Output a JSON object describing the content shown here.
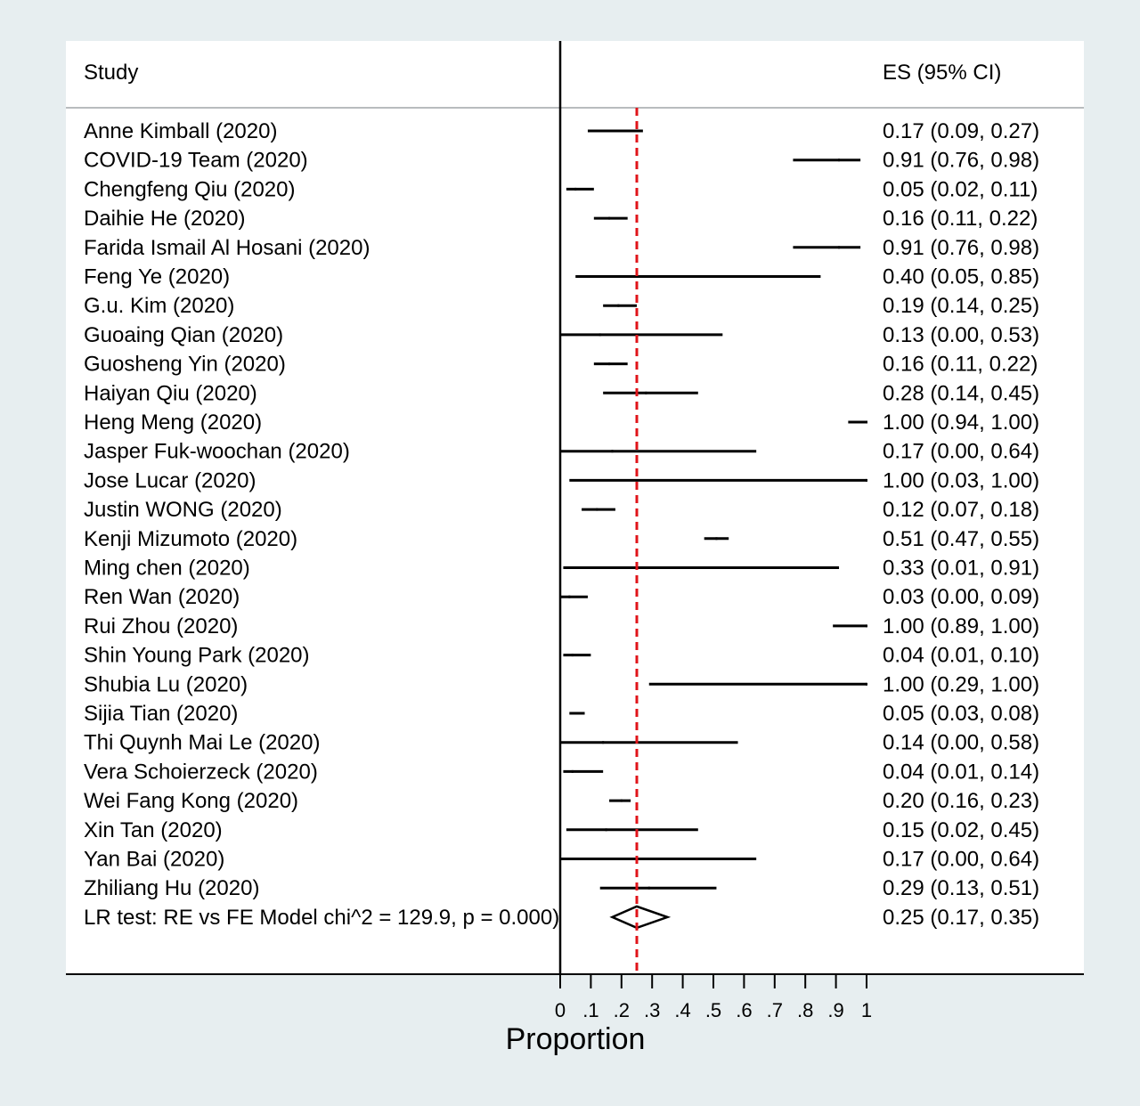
{
  "chart_data": {
    "type": "forest",
    "header": {
      "study": "Study",
      "es": "ES (95% CI)"
    },
    "xlabel": "Proportion",
    "xlim": [
      0,
      1
    ],
    "ticks": [
      {
        "value": 0,
        "label": "0"
      },
      {
        "value": 0.1,
        "label": ".1"
      },
      {
        "value": 0.2,
        "label": ".2"
      },
      {
        "value": 0.3,
        "label": ".3"
      },
      {
        "value": 0.4,
        "label": ".4"
      },
      {
        "value": 0.5,
        "label": ".5"
      },
      {
        "value": 0.6,
        "label": ".6"
      },
      {
        "value": 0.7,
        "label": ".7"
      },
      {
        "value": 0.8,
        "label": ".8"
      },
      {
        "value": 0.9,
        "label": ".9"
      },
      {
        "value": 1,
        "label": "1"
      }
    ],
    "reference_line": 0.25,
    "reference_color": "#e0141a",
    "studies": [
      {
        "name": "Anne Kimball (2020)",
        "es": 0.17,
        "lo": 0.09,
        "hi": 0.27,
        "label": "0.17 (0.09, 0.27)"
      },
      {
        "name": "COVID-19 Team (2020)",
        "es": 0.91,
        "lo": 0.76,
        "hi": 0.98,
        "label": "0.91 (0.76, 0.98)"
      },
      {
        "name": "Chengfeng Qiu (2020)",
        "es": 0.05,
        "lo": 0.02,
        "hi": 0.11,
        "label": "0.05 (0.02, 0.11)"
      },
      {
        "name": "Daihie He (2020)",
        "es": 0.16,
        "lo": 0.11,
        "hi": 0.22,
        "label": "0.16 (0.11, 0.22)"
      },
      {
        "name": "Farida Ismail Al Hosani (2020)",
        "es": 0.91,
        "lo": 0.76,
        "hi": 0.98,
        "label": "0.91 (0.76, 0.98)"
      },
      {
        "name": "Feng Ye (2020)",
        "es": 0.4,
        "lo": 0.05,
        "hi": 0.85,
        "label": "0.40 (0.05, 0.85)"
      },
      {
        "name": "G.u. Kim (2020)",
        "es": 0.19,
        "lo": 0.14,
        "hi": 0.25,
        "label": "0.19 (0.14, 0.25)"
      },
      {
        "name": "Guoaing Qian (2020)",
        "es": 0.13,
        "lo": 0.0,
        "hi": 0.53,
        "label": "0.13 (0.00, 0.53)"
      },
      {
        "name": "Guosheng Yin (2020)",
        "es": 0.16,
        "lo": 0.11,
        "hi": 0.22,
        "label": "0.16 (0.11, 0.22)"
      },
      {
        "name": "Haiyan Qiu (2020)",
        "es": 0.28,
        "lo": 0.14,
        "hi": 0.45,
        "label": "0.28 (0.14, 0.45)"
      },
      {
        "name": "Heng Meng (2020)",
        "es": 1.0,
        "lo": 0.94,
        "hi": 1.0,
        "label": "1.00 (0.94, 1.00)"
      },
      {
        "name": "Jasper Fuk-woochan (2020)",
        "es": 0.17,
        "lo": 0.0,
        "hi": 0.64,
        "label": "0.17 (0.00, 0.64)"
      },
      {
        "name": "Jose Lucar (2020)",
        "es": 1.0,
        "lo": 0.03,
        "hi": 1.0,
        "label": "1.00 (0.03, 1.00)"
      },
      {
        "name": "Justin WONG (2020)",
        "es": 0.12,
        "lo": 0.07,
        "hi": 0.18,
        "label": "0.12 (0.07, 0.18)"
      },
      {
        "name": "Kenji Mizumoto (2020)",
        "es": 0.51,
        "lo": 0.47,
        "hi": 0.55,
        "label": "0.51 (0.47, 0.55)"
      },
      {
        "name": "Ming chen (2020)",
        "es": 0.33,
        "lo": 0.01,
        "hi": 0.91,
        "label": "0.33 (0.01, 0.91)"
      },
      {
        "name": "Ren Wan (2020)",
        "es": 0.03,
        "lo": 0.0,
        "hi": 0.09,
        "label": "0.03 (0.00, 0.09)"
      },
      {
        "name": "Rui Zhou (2020)",
        "es": 1.0,
        "lo": 0.89,
        "hi": 1.0,
        "label": "1.00 (0.89, 1.00)"
      },
      {
        "name": "Shin Young Park (2020)",
        "es": 0.04,
        "lo": 0.01,
        "hi": 0.1,
        "label": "0.04 (0.01, 0.10)"
      },
      {
        "name": "Shubia Lu (2020)",
        "es": 1.0,
        "lo": 0.29,
        "hi": 1.0,
        "label": "1.00 (0.29, 1.00)"
      },
      {
        "name": "Sijia Tian (2020)",
        "es": 0.05,
        "lo": 0.03,
        "hi": 0.08,
        "label": "0.05 (0.03, 0.08)"
      },
      {
        "name": "Thi Quynh Mai Le (2020)",
        "es": 0.14,
        "lo": 0.0,
        "hi": 0.58,
        "label": "0.14 (0.00, 0.58)"
      },
      {
        "name": "Vera Schoierzeck (2020)",
        "es": 0.04,
        "lo": 0.01,
        "hi": 0.14,
        "label": "0.04 (0.01, 0.14)"
      },
      {
        "name": "Wei Fang Kong (2020)",
        "es": 0.2,
        "lo": 0.16,
        "hi": 0.23,
        "label": "0.20 (0.16, 0.23)"
      },
      {
        "name": "Xin Tan (2020)",
        "es": 0.15,
        "lo": 0.02,
        "hi": 0.45,
        "label": "0.15 (0.02, 0.45)"
      },
      {
        "name": "Yan Bai (2020)",
        "es": 0.17,
        "lo": 0.0,
        "hi": 0.64,
        "label": "0.17 (0.00, 0.64)"
      },
      {
        "name": "Zhiliang Hu (2020)",
        "es": 0.29,
        "lo": 0.13,
        "hi": 0.51,
        "label": "0.29 (0.13, 0.51)"
      }
    ],
    "overall": {
      "name": "LR test: RE vs FE Model chi^2 = 129.9, p = 0.000)",
      "es": 0.25,
      "lo": 0.17,
      "hi": 0.35,
      "label": "0.25 (0.17, 0.35)"
    },
    "colors": {
      "background": "#e7eef0",
      "panel": "#ffffff",
      "marks": "#000000",
      "header_rule": "#b8bcbe"
    }
  }
}
